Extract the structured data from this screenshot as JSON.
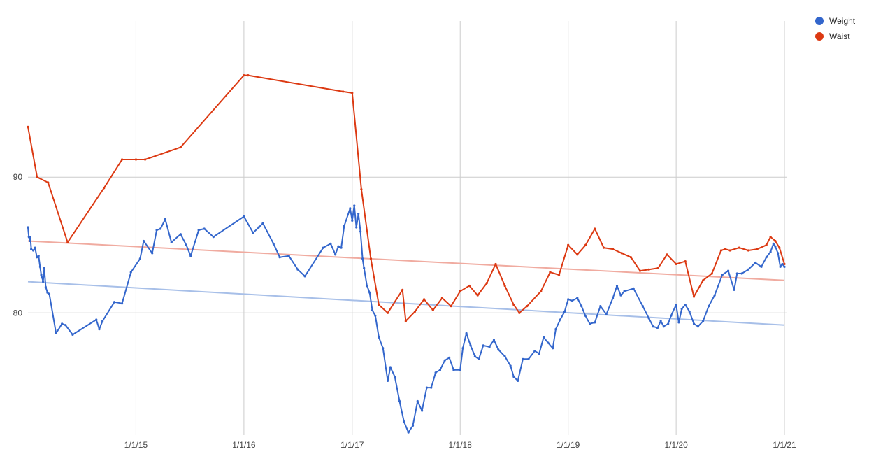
{
  "chart_data": {
    "type": "line",
    "title": "",
    "xlabel": "",
    "ylabel": "",
    "xlim": [
      "2014-01-01",
      "2021-01-01"
    ],
    "ylim": [
      71,
      101.5
    ],
    "grid": true,
    "legend_position": "top-right",
    "x_ticks": [
      {
        "value": "2015-01-01",
        "label": "1/1/15"
      },
      {
        "value": "2016-01-01",
        "label": "1/1/16"
      },
      {
        "value": "2017-01-01",
        "label": "1/1/17"
      },
      {
        "value": "2018-01-01",
        "label": "1/1/18"
      },
      {
        "value": "2019-01-01",
        "label": "1/1/19"
      },
      {
        "value": "2020-01-01",
        "label": "1/1/20"
      },
      {
        "value": "2021-01-01",
        "label": "1/1/21"
      }
    ],
    "y_ticks": [
      {
        "value": 80,
        "label": "80"
      },
      {
        "value": 90,
        "label": "90"
      }
    ],
    "series": [
      {
        "name": "Weight",
        "color": "#3366cc",
        "trendline": {
          "color": "#a7bfe8",
          "x": [
            "2014-01-01",
            "2021-01-01"
          ],
          "y": [
            82.3,
            79.1
          ]
        },
        "points": [
          [
            "2014-01-01",
            86.3
          ],
          [
            "2014-01-04",
            85.6
          ],
          [
            "2014-01-07",
            85.3
          ],
          [
            "2014-01-09",
            85.6
          ],
          [
            "2014-01-12",
            84.7
          ],
          [
            "2014-01-19",
            84.6
          ],
          [
            "2014-01-25",
            84.8
          ],
          [
            "2014-01-31",
            84.1
          ],
          [
            "2014-02-06",
            84.2
          ],
          [
            "2014-02-11",
            83.4
          ],
          [
            "2014-02-15",
            82.8
          ],
          [
            "2014-02-18",
            82.6
          ],
          [
            "2014-02-21",
            82.3
          ],
          [
            "2014-02-25",
            83.3
          ],
          [
            "2014-03-02",
            81.9
          ],
          [
            "2014-03-08",
            81.5
          ],
          [
            "2014-03-14",
            81.4
          ],
          [
            "2014-04-06",
            78.5
          ],
          [
            "2014-04-26",
            79.2
          ],
          [
            "2014-05-08",
            79.1
          ],
          [
            "2014-06-01",
            78.4
          ],
          [
            "2014-08-20",
            79.5
          ],
          [
            "2014-08-30",
            78.8
          ],
          [
            "2014-09-10",
            79.4
          ],
          [
            "2014-10-20",
            80.8
          ],
          [
            "2014-11-15",
            80.7
          ],
          [
            "2014-12-15",
            83.0
          ],
          [
            "2015-01-15",
            84.0
          ],
          [
            "2015-01-27",
            85.3
          ],
          [
            "2015-02-25",
            84.4
          ],
          [
            "2015-03-12",
            86.1
          ],
          [
            "2015-03-25",
            86.2
          ],
          [
            "2015-04-10",
            86.9
          ],
          [
            "2015-05-01",
            85.2
          ],
          [
            "2015-06-01",
            85.8
          ],
          [
            "2015-06-20",
            85.0
          ],
          [
            "2015-07-05",
            84.2
          ],
          [
            "2015-08-01",
            86.1
          ],
          [
            "2015-08-20",
            86.2
          ],
          [
            "2015-09-20",
            85.6
          ],
          [
            "2016-01-01",
            87.1
          ],
          [
            "2016-02-01",
            85.9
          ],
          [
            "2016-02-20",
            86.3
          ],
          [
            "2016-03-05",
            86.6
          ],
          [
            "2016-04-10",
            85.1
          ],
          [
            "2016-05-01",
            84.1
          ],
          [
            "2016-06-01",
            84.2
          ],
          [
            "2016-07-01",
            83.2
          ],
          [
            "2016-07-25",
            82.7
          ],
          [
            "2016-09-25",
            84.8
          ],
          [
            "2016-10-20",
            85.1
          ],
          [
            "2016-11-05",
            84.3
          ],
          [
            "2016-11-15",
            84.9
          ],
          [
            "2016-11-25",
            84.8
          ],
          [
            "2016-12-05",
            86.4
          ],
          [
            "2016-12-25",
            87.7
          ],
          [
            "2017-01-01",
            86.8
          ],
          [
            "2017-01-08",
            87.9
          ],
          [
            "2017-01-15",
            86.3
          ],
          [
            "2017-01-22",
            87.3
          ],
          [
            "2017-01-29",
            86.0
          ],
          [
            "2017-02-05",
            84.0
          ],
          [
            "2017-02-10",
            83.3
          ],
          [
            "2017-02-20",
            82.0
          ],
          [
            "2017-03-01",
            81.5
          ],
          [
            "2017-03-10",
            80.2
          ],
          [
            "2017-03-20",
            79.8
          ],
          [
            "2017-04-01",
            78.2
          ],
          [
            "2017-04-15",
            77.4
          ],
          [
            "2017-05-01",
            75.0
          ],
          [
            "2017-05-10",
            76.0
          ],
          [
            "2017-05-25",
            75.3
          ],
          [
            "2017-06-10",
            73.5
          ],
          [
            "2017-06-25",
            72.0
          ],
          [
            "2017-07-10",
            71.2
          ],
          [
            "2017-07-25",
            71.7
          ],
          [
            "2017-08-10",
            73.5
          ],
          [
            "2017-08-25",
            72.8
          ],
          [
            "2017-09-10",
            74.5
          ],
          [
            "2017-09-25",
            74.5
          ],
          [
            "2017-10-10",
            75.6
          ],
          [
            "2017-10-25",
            75.8
          ],
          [
            "2017-11-10",
            76.5
          ],
          [
            "2017-11-25",
            76.7
          ],
          [
            "2017-12-10",
            75.8
          ],
          [
            "2018-01-01",
            75.8
          ],
          [
            "2018-01-10",
            77.4
          ],
          [
            "2018-01-22",
            78.5
          ],
          [
            "2018-02-05",
            77.6
          ],
          [
            "2018-02-20",
            76.8
          ],
          [
            "2018-03-05",
            76.6
          ],
          [
            "2018-03-20",
            77.6
          ],
          [
            "2018-04-10",
            77.5
          ],
          [
            "2018-04-25",
            78.0
          ],
          [
            "2018-05-10",
            77.3
          ],
          [
            "2018-06-01",
            76.8
          ],
          [
            "2018-06-20",
            76.1
          ],
          [
            "2018-07-01",
            75.3
          ],
          [
            "2018-07-15",
            75.0
          ],
          [
            "2018-08-01",
            76.6
          ],
          [
            "2018-08-20",
            76.6
          ],
          [
            "2018-09-10",
            77.2
          ],
          [
            "2018-09-25",
            77.0
          ],
          [
            "2018-10-10",
            78.2
          ],
          [
            "2018-10-25",
            77.8
          ],
          [
            "2018-11-10",
            77.4
          ],
          [
            "2018-11-20",
            78.8
          ],
          [
            "2018-12-05",
            79.5
          ],
          [
            "2018-12-20",
            80.1
          ],
          [
            "2019-01-01",
            81.0
          ],
          [
            "2019-01-15",
            80.9
          ],
          [
            "2019-02-01",
            81.1
          ],
          [
            "2019-02-15",
            80.5
          ],
          [
            "2019-02-28",
            79.8
          ],
          [
            "2019-03-15",
            79.2
          ],
          [
            "2019-04-01",
            79.3
          ],
          [
            "2019-04-20",
            80.5
          ],
          [
            "2019-05-10",
            79.9
          ],
          [
            "2019-06-01",
            81.1
          ],
          [
            "2019-06-15",
            82.0
          ],
          [
            "2019-06-28",
            81.3
          ],
          [
            "2019-07-10",
            81.6
          ],
          [
            "2019-08-10",
            81.8
          ],
          [
            "2019-09-10",
            80.5
          ],
          [
            "2019-10-01",
            79.6
          ],
          [
            "2019-10-15",
            79.0
          ],
          [
            "2019-10-30",
            78.9
          ],
          [
            "2019-11-10",
            79.4
          ],
          [
            "2019-11-20",
            79.0
          ],
          [
            "2019-12-05",
            79.2
          ],
          [
            "2019-12-15",
            79.8
          ],
          [
            "2020-01-01",
            80.6
          ],
          [
            "2020-01-10",
            79.3
          ],
          [
            "2020-01-20",
            80.3
          ],
          [
            "2020-02-01",
            80.6
          ],
          [
            "2020-02-15",
            80.1
          ],
          [
            "2020-03-01",
            79.2
          ],
          [
            "2020-03-15",
            79.0
          ],
          [
            "2020-04-01",
            79.4
          ],
          [
            "2020-04-20",
            80.5
          ],
          [
            "2020-05-10",
            81.3
          ],
          [
            "2020-06-05",
            82.8
          ],
          [
            "2020-06-25",
            83.1
          ],
          [
            "2020-07-15",
            81.7
          ],
          [
            "2020-07-25",
            82.9
          ],
          [
            "2020-08-10",
            82.9
          ],
          [
            "2020-09-01",
            83.2
          ],
          [
            "2020-09-25",
            83.7
          ],
          [
            "2020-10-15",
            83.4
          ],
          [
            "2020-11-01",
            84.1
          ],
          [
            "2020-11-15",
            84.5
          ],
          [
            "2020-11-25",
            85.1
          ],
          [
            "2020-12-01",
            84.9
          ],
          [
            "2020-12-10",
            84.4
          ],
          [
            "2020-12-18",
            83.4
          ],
          [
            "2020-12-25",
            83.6
          ],
          [
            "2021-01-01",
            83.4
          ]
        ]
      },
      {
        "name": "Waist",
        "color": "#dc3912",
        "trendline": {
          "color": "#f0aba0",
          "x": [
            "2014-01-01",
            "2021-01-01"
          ],
          "y": [
            85.3,
            82.4
          ]
        },
        "points": [
          [
            "2014-01-01",
            93.7
          ],
          [
            "2014-02-01",
            90.0
          ],
          [
            "2014-03-10",
            89.6
          ],
          [
            "2014-05-15",
            85.2
          ],
          [
            "2014-09-15",
            89.2
          ],
          [
            "2014-11-15",
            91.3
          ],
          [
            "2015-01-01",
            91.3
          ],
          [
            "2015-02-01",
            91.3
          ],
          [
            "2015-06-01",
            92.2
          ],
          [
            "2016-01-01",
            97.5
          ],
          [
            "2016-01-15",
            97.5
          ],
          [
            "2016-12-01",
            96.3
          ],
          [
            "2017-01-01",
            96.2
          ],
          [
            "2017-02-01",
            89.1
          ],
          [
            "2017-03-05",
            84.0
          ],
          [
            "2017-04-01",
            80.6
          ],
          [
            "2017-05-01",
            80.0
          ],
          [
            "2017-06-20",
            81.7
          ],
          [
            "2017-07-01",
            79.4
          ],
          [
            "2017-08-01",
            80.1
          ],
          [
            "2017-09-01",
            81.0
          ],
          [
            "2017-10-01",
            80.2
          ],
          [
            "2017-11-01",
            81.1
          ],
          [
            "2017-12-01",
            80.5
          ],
          [
            "2018-01-01",
            81.6
          ],
          [
            "2018-02-01",
            82.0
          ],
          [
            "2018-03-01",
            81.3
          ],
          [
            "2018-04-01",
            82.2
          ],
          [
            "2018-05-01",
            83.6
          ],
          [
            "2018-06-01",
            82.0
          ],
          [
            "2018-07-01",
            80.6
          ],
          [
            "2018-07-20",
            80.0
          ],
          [
            "2018-08-15",
            80.5
          ],
          [
            "2018-10-01",
            81.6
          ],
          [
            "2018-11-01",
            83.0
          ],
          [
            "2018-12-01",
            82.8
          ],
          [
            "2019-01-01",
            85.0
          ],
          [
            "2019-02-01",
            84.3
          ],
          [
            "2019-03-01",
            85.0
          ],
          [
            "2019-04-01",
            86.2
          ],
          [
            "2019-05-01",
            84.8
          ],
          [
            "2019-06-01",
            84.7
          ],
          [
            "2019-07-01",
            84.4
          ],
          [
            "2019-08-01",
            84.1
          ],
          [
            "2019-09-01",
            83.1
          ],
          [
            "2019-10-01",
            83.2
          ],
          [
            "2019-11-01",
            83.3
          ],
          [
            "2019-12-01",
            84.3
          ],
          [
            "2020-01-01",
            83.6
          ],
          [
            "2020-02-01",
            83.8
          ],
          [
            "2020-03-01",
            81.2
          ],
          [
            "2020-04-01",
            82.4
          ],
          [
            "2020-05-01",
            82.9
          ],
          [
            "2020-06-01",
            84.6
          ],
          [
            "2020-06-15",
            84.7
          ],
          [
            "2020-07-01",
            84.6
          ],
          [
            "2020-08-01",
            84.8
          ],
          [
            "2020-09-01",
            84.6
          ],
          [
            "2020-10-01",
            84.7
          ],
          [
            "2020-11-01",
            85.0
          ],
          [
            "2020-11-15",
            85.6
          ],
          [
            "2020-12-01",
            85.3
          ],
          [
            "2020-12-15",
            84.8
          ],
          [
            "2021-01-01",
            83.6
          ]
        ]
      }
    ]
  }
}
